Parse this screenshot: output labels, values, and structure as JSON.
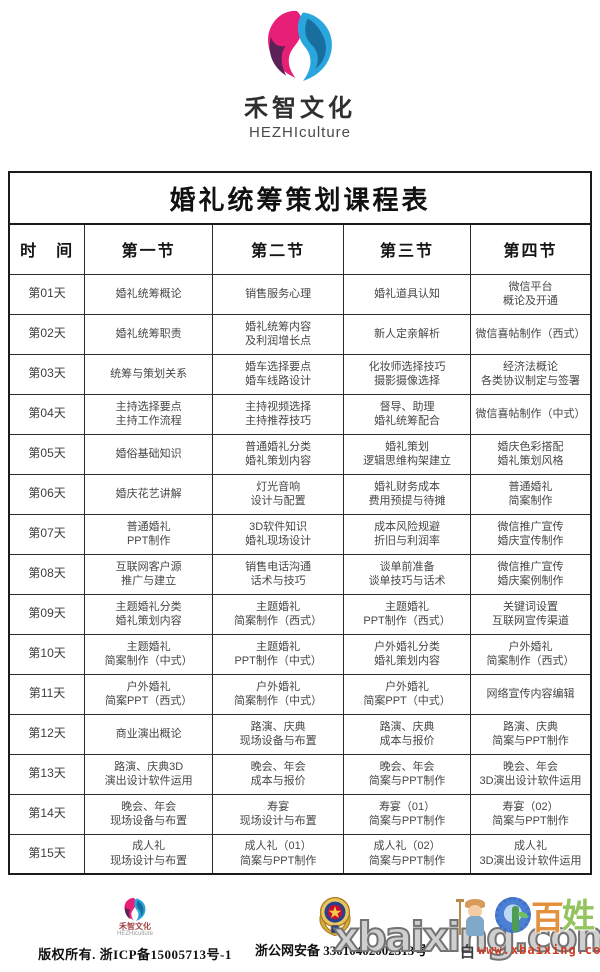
{
  "colors": {
    "logo_pink": "#e81f76",
    "logo_purple": "#5b2159",
    "logo_blue": "#2aa6de",
    "logo_teal": "#186f9d",
    "watermark_gray": "#cfcfcf",
    "url_red": "#cf3a23"
  },
  "brand": {
    "name": "禾智文化",
    "name_en": "HEZHIculture"
  },
  "table": {
    "title": "婚礼统筹策划课程表",
    "headers": [
      "时　间",
      "第一节",
      "第二节",
      "第三节",
      "第四节"
    ],
    "rows": [
      {
        "day": "第01天",
        "cells": [
          "婚礼统筹概论",
          "销售服务心理",
          "婚礼道具认知",
          "微信平台\n概论及开通"
        ]
      },
      {
        "day": "第02天",
        "cells": [
          "婚礼统筹职责",
          "婚礼统筹内容\n及利润增长点",
          "新人定亲解析",
          "微信喜帖制作（西式）"
        ]
      },
      {
        "day": "第03天",
        "cells": [
          "统筹与策划关系",
          "婚车选择要点\n婚车线路设计",
          "化妆师选择技巧\n摄影摄像选择",
          "经济法概论\n各类协议制定与签署"
        ]
      },
      {
        "day": "第04天",
        "cells": [
          "主持选择要点\n主持工作流程",
          "主持视频选择\n主持推荐技巧",
          "督导、助理\n婚礼统筹配合",
          "微信喜帖制作（中式）"
        ]
      },
      {
        "day": "第05天",
        "cells": [
          "婚俗基础知识",
          "普通婚礼分类\n婚礼策划内容",
          "婚礼策划\n逻辑思维构架建立",
          "婚庆色彩搭配\n婚礼策划风格"
        ]
      },
      {
        "day": "第06天",
        "cells": [
          "婚庆花艺讲解",
          "灯光音响\n设计与配置",
          "婚礼财务成本\n费用预提与待摊",
          "普通婚礼\n简案制作"
        ]
      },
      {
        "day": "第07天",
        "cells": [
          "普通婚礼\nPPT制作",
          "3D软件知识\n婚礼现场设计",
          "成本风险规避\n折旧与利润率",
          "微信推广宣传\n婚庆宣传制作"
        ]
      },
      {
        "day": "第08天",
        "cells": [
          "互联网客户源\n推广与建立",
          "销售电话沟通\n话术与技巧",
          "谈单前准备\n谈单技巧与话术",
          "微信推广宣传\n婚庆案例制作"
        ]
      },
      {
        "day": "第09天",
        "cells": [
          "主题婚礼分类\n婚礼策划内容",
          "主题婚礼\n简案制作（西式）",
          "主题婚礼\nPPT制作（西式）",
          "关键词设置\n互联网宣传渠道"
        ]
      },
      {
        "day": "第10天",
        "cells": [
          "主题婚礼\n简案制作（中式）",
          "主题婚礼\nPPT制作（中式）",
          "户外婚礼分类\n婚礼策划内容",
          "户外婚礼\n简案制作（西式）"
        ]
      },
      {
        "day": "第11天",
        "cells": [
          "户外婚礼\n简案PPT（西式）",
          "户外婚礼\n简案制作（中式）",
          "户外婚礼\n简案PPT（中式）",
          "网络宣传内容编辑"
        ]
      },
      {
        "day": "第12天",
        "cells": [
          "商业演出概论",
          "路演、庆典\n现场设备与布置",
          "路演、庆典\n成本与报价",
          "路演、庆典\n简案与PPT制作"
        ]
      },
      {
        "day": "第13天",
        "cells": [
          "路演、庆典3D\n演出设计软件运用",
          "晚会、年会\n成本与报价",
          "晚会、年会\n简案与PPT制作",
          "晚会、年会\n3D演出设计软件运用"
        ]
      },
      {
        "day": "第14天",
        "cells": [
          "晚会、年会\n现场设备与布置",
          "寿宴\n现场设计与布置",
          "寿宴（01）\n简案与PPT制作",
          "寿宴（02）\n简案与PPT制作"
        ]
      },
      {
        "day": "第15天",
        "cells": [
          "成人礼\n现场设计与布置",
          "成人礼（01）\n简案与PPT制作",
          "成人礼（02）\n简案与PPT制作",
          "成人礼\n3D演出设计软件运用"
        ]
      }
    ]
  },
  "footer": {
    "mini_brand_name": "禾智文化",
    "mini_brand_name_en": "HEZHIculture",
    "copyright": "版权所有. 浙ICP备15005713号-1",
    "security": "浙公网安备 33010402002313号"
  },
  "watermark": {
    "big_text": "xbaixing.com",
    "url": "www.xbaixing.com",
    "char_bai": "百",
    "char_xing": "姓",
    "char_dark": "白"
  }
}
